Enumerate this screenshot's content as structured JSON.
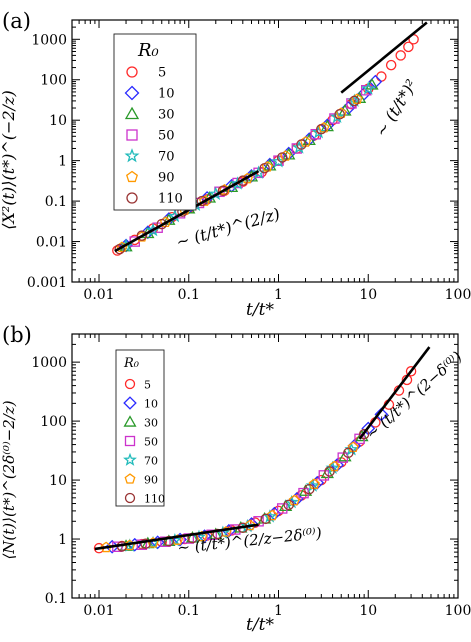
{
  "chart_data": [
    {
      "type": "scatter",
      "panel_label": "(a)",
      "x_scale": "log",
      "y_scale": "log",
      "xlim": [
        0.005,
        100
      ],
      "ylim": [
        0.001,
        3000
      ],
      "xlabel": "t/t*",
      "ylabel": "⟨X²(t)⟩(t*)^(−2/z)",
      "x_ticks": [
        {
          "value": 0.01,
          "label": "0.01"
        },
        {
          "value": 0.1,
          "label": "0.1"
        },
        {
          "value": 1,
          "label": "1"
        },
        {
          "value": 10,
          "label": "10"
        },
        {
          "value": 100,
          "label": "100"
        }
      ],
      "y_ticks": [
        {
          "value": 0.001,
          "label": "0.001"
        },
        {
          "value": 0.01,
          "label": "0.01"
        },
        {
          "value": 0.1,
          "label": "0.1"
        },
        {
          "value": 1,
          "label": "1"
        },
        {
          "value": 10,
          "label": "10"
        },
        {
          "value": 100,
          "label": "100"
        },
        {
          "value": 1000,
          "label": "1000"
        }
      ],
      "legend": {
        "title": "R₀",
        "placement": "top-left",
        "entries": [
          {
            "label": "5",
            "marker": "circle",
            "color": "#ff2a2a"
          },
          {
            "label": "10",
            "marker": "diamond",
            "color": "#2a2aff"
          },
          {
            "label": "30",
            "marker": "triangle",
            "color": "#2a9a2a"
          },
          {
            "label": "50",
            "marker": "square",
            "color": "#cc33cc"
          },
          {
            "label": "70",
            "marker": "star",
            "color": "#22bbbb"
          },
          {
            "label": "90",
            "marker": "pentagon",
            "color": "#ff9900"
          },
          {
            "label": "110",
            "marker": "circle",
            "color": "#993333"
          }
        ]
      },
      "fit_lines": [
        {
          "label": "∼ (t/t*)^(2/z)",
          "points": [
            [
              0.015,
              0.0058
            ],
            [
              0.6,
              0.55
            ]
          ]
        },
        {
          "label": "∼ (t/t*)²",
          "points": [
            [
              5,
              48
            ],
            [
              45,
              2600
            ]
          ]
        }
      ],
      "series": [
        {
          "label": "5",
          "points": [
            [
              0.016,
              0.006
            ],
            [
              0.025,
              0.011
            ],
            [
              0.04,
              0.021
            ],
            [
              0.065,
              0.04
            ],
            [
              0.1,
              0.066
            ],
            [
              0.16,
              0.11
            ],
            [
              0.25,
              0.18
            ],
            [
              0.4,
              0.3
            ],
            [
              0.65,
              0.52
            ],
            [
              1.0,
              1.0
            ],
            [
              1.6,
              2.0
            ],
            [
              2.5,
              4.2
            ],
            [
              4.0,
              10
            ],
            [
              6.5,
              25
            ],
            [
              10,
              60
            ],
            [
              14,
              120
            ],
            [
              18,
              230
            ],
            [
              23,
              400
            ],
            [
              28,
              650
            ],
            [
              32,
              1000
            ]
          ]
        },
        {
          "label": "10",
          "points": [
            [
              0.02,
              0.008
            ],
            [
              0.035,
              0.017
            ],
            [
              0.06,
              0.036
            ],
            [
              0.1,
              0.07
            ],
            [
              0.16,
              0.12
            ],
            [
              0.3,
              0.24
            ],
            [
              0.5,
              0.42
            ],
            [
              0.8,
              0.8
            ],
            [
              1.3,
              1.5
            ],
            [
              2.2,
              3.4
            ],
            [
              3.5,
              7.5
            ],
            [
              6,
              20
            ],
            [
              9,
              45
            ],
            [
              12,
              90
            ]
          ]
        },
        {
          "label": "30",
          "points": [
            [
              0.02,
              0.0075
            ],
            [
              0.035,
              0.016
            ],
            [
              0.06,
              0.034
            ],
            [
              0.1,
              0.065
            ],
            [
              0.17,
              0.12
            ],
            [
              0.3,
              0.22
            ],
            [
              0.5,
              0.4
            ],
            [
              0.8,
              0.75
            ],
            [
              1.3,
              1.4
            ],
            [
              2.2,
              3.2
            ],
            [
              3.5,
              7
            ],
            [
              5.5,
              17
            ],
            [
              8,
              35
            ],
            [
              11,
              75
            ]
          ]
        },
        {
          "label": "50",
          "points": [
            [
              0.025,
              0.01
            ],
            [
              0.045,
              0.022
            ],
            [
              0.08,
              0.05
            ],
            [
              0.13,
              0.09
            ],
            [
              0.22,
              0.17
            ],
            [
              0.35,
              0.28
            ],
            [
              0.6,
              0.5
            ],
            [
              1.0,
              1.0
            ],
            [
              1.6,
              2.0
            ],
            [
              2.6,
              4.5
            ],
            [
              4.2,
              11
            ],
            [
              6.5,
              26
            ],
            [
              9.5,
              55
            ]
          ]
        },
        {
          "label": "70",
          "points": [
            [
              0.02,
              0.0078
            ],
            [
              0.04,
              0.019
            ],
            [
              0.07,
              0.042
            ],
            [
              0.12,
              0.08
            ],
            [
              0.2,
              0.15
            ],
            [
              0.35,
              0.27
            ],
            [
              0.6,
              0.5
            ],
            [
              1.0,
              0.95
            ],
            [
              1.7,
              2.1
            ],
            [
              2.8,
              5
            ],
            [
              4.5,
              12
            ],
            [
              7,
              30
            ],
            [
              10,
              60
            ]
          ]
        },
        {
          "label": "90",
          "points": [
            [
              0.018,
              0.0072
            ],
            [
              0.03,
              0.013
            ],
            [
              0.055,
              0.03
            ],
            [
              0.09,
              0.06
            ],
            [
              0.15,
              0.1
            ],
            [
              0.25,
              0.19
            ],
            [
              0.45,
              0.36
            ],
            [
              0.75,
              0.7
            ],
            [
              1.2,
              1.3
            ],
            [
              2.0,
              2.9
            ],
            [
              3.2,
              6.5
            ],
            [
              5,
              15
            ],
            [
              7.5,
              33
            ]
          ]
        },
        {
          "label": "110",
          "points": [
            [
              0.017,
              0.0065
            ],
            [
              0.03,
              0.014
            ],
            [
              0.05,
              0.027
            ],
            [
              0.085,
              0.055
            ],
            [
              0.14,
              0.1
            ],
            [
              0.24,
              0.18
            ],
            [
              0.4,
              0.32
            ],
            [
              0.7,
              0.65
            ],
            [
              1.1,
              1.2
            ],
            [
              1.8,
              2.5
            ],
            [
              3.0,
              6
            ],
            [
              4.8,
              14
            ],
            [
              7,
              30
            ]
          ]
        }
      ]
    },
    {
      "type": "scatter",
      "panel_label": "(b)",
      "x_scale": "log",
      "y_scale": "log",
      "xlim": [
        0.005,
        100
      ],
      "ylim": [
        0.1,
        3000
      ],
      "xlabel": "t/t*",
      "ylabel": "⟨N(t)⟩(t*)^(2δ⁽⁰⁾−2/z)",
      "x_ticks": [
        {
          "value": 0.01,
          "label": "0.01"
        },
        {
          "value": 0.1,
          "label": "0.1"
        },
        {
          "value": 1,
          "label": "1"
        },
        {
          "value": 10,
          "label": "10"
        },
        {
          "value": 100,
          "label": "100"
        }
      ],
      "y_ticks": [
        {
          "value": 0.1,
          "label": "0.1"
        },
        {
          "value": 1,
          "label": "1"
        },
        {
          "value": 10,
          "label": "10"
        },
        {
          "value": 100,
          "label": "100"
        },
        {
          "value": 1000,
          "label": "1000"
        }
      ],
      "legend": {
        "title": "R₀",
        "placement": "top-left",
        "entries": [
          {
            "label": "5",
            "marker": "circle",
            "color": "#ff2a2a"
          },
          {
            "label": "10",
            "marker": "diamond",
            "color": "#2a2aff"
          },
          {
            "label": "30",
            "marker": "triangle",
            "color": "#2a9a2a"
          },
          {
            "label": "50",
            "marker": "square",
            "color": "#cc33cc"
          },
          {
            "label": "70",
            "marker": "star",
            "color": "#22bbbb"
          },
          {
            "label": "90",
            "marker": "pentagon",
            "color": "#ff9900"
          },
          {
            "label": "110",
            "marker": "circle",
            "color": "#993333"
          }
        ]
      },
      "fit_lines": [
        {
          "label": "∼ (t/t*)^(2/z−2δ⁽⁰⁾)",
          "points": [
            [
              0.009,
              0.68
            ],
            [
              0.6,
              1.75
            ]
          ]
        },
        {
          "label": "∼ (t/t*)^(2−δ⁽⁰⁾)",
          "points": [
            [
              8,
              50
            ],
            [
              48,
              1800
            ]
          ]
        }
      ],
      "series": [
        {
          "label": "5",
          "points": [
            [
              0.01,
              0.7
            ],
            [
              0.018,
              0.76
            ],
            [
              0.03,
              0.82
            ],
            [
              0.05,
              0.9
            ],
            [
              0.09,
              1.0
            ],
            [
              0.16,
              1.15
            ],
            [
              0.3,
              1.4
            ],
            [
              0.55,
              1.9
            ],
            [
              1.0,
              3.0
            ],
            [
              1.8,
              5.5
            ],
            [
              3.0,
              10
            ],
            [
              5.0,
              20
            ],
            [
              8.0,
              45
            ],
            [
              12,
              95
            ],
            [
              17,
              190
            ],
            [
              22,
              330
            ],
            [
              27,
              500
            ],
            [
              30,
              700
            ]
          ]
        },
        {
          "label": "10",
          "points": [
            [
              0.014,
              0.74
            ],
            [
              0.025,
              0.8
            ],
            [
              0.045,
              0.88
            ],
            [
              0.08,
              0.98
            ],
            [
              0.15,
              1.12
            ],
            [
              0.28,
              1.38
            ],
            [
              0.5,
              1.8
            ],
            [
              0.9,
              2.7
            ],
            [
              1.6,
              4.8
            ],
            [
              2.7,
              9
            ],
            [
              4.5,
              18
            ],
            [
              7,
              38
            ],
            [
              10,
              75
            ],
            [
              14,
              130
            ]
          ]
        },
        {
          "label": "30",
          "points": [
            [
              0.02,
              0.76
            ],
            [
              0.035,
              0.84
            ],
            [
              0.06,
              0.92
            ],
            [
              0.11,
              1.05
            ],
            [
              0.2,
              1.2
            ],
            [
              0.38,
              1.55
            ],
            [
              0.7,
              2.2
            ],
            [
              1.2,
              3.6
            ],
            [
              2.0,
              6.5
            ],
            [
              3.5,
              13
            ],
            [
              5.5,
              25
            ],
            [
              8.5,
              55
            ]
          ]
        },
        {
          "label": "50",
          "points": [
            [
              0.016,
              0.74
            ],
            [
              0.03,
              0.8
            ],
            [
              0.055,
              0.9
            ],
            [
              0.1,
              1.02
            ],
            [
              0.18,
              1.18
            ],
            [
              0.33,
              1.45
            ],
            [
              0.6,
              2.0
            ],
            [
              1.1,
              3.3
            ],
            [
              1.9,
              6
            ],
            [
              3.2,
              12
            ],
            [
              5.2,
              24
            ],
            [
              8,
              50
            ]
          ]
        },
        {
          "label": "70",
          "points": [
            [
              0.022,
              0.77
            ],
            [
              0.04,
              0.85
            ],
            [
              0.07,
              0.95
            ],
            [
              0.13,
              1.08
            ],
            [
              0.24,
              1.27
            ],
            [
              0.45,
              1.65
            ],
            [
              0.8,
              2.4
            ],
            [
              1.4,
              4.2
            ],
            [
              2.4,
              8
            ],
            [
              4.0,
              16
            ],
            [
              6.5,
              33
            ]
          ]
        },
        {
          "label": "90",
          "points": [
            [
              0.012,
              0.72
            ],
            [
              0.022,
              0.78
            ],
            [
              0.04,
              0.86
            ],
            [
              0.075,
              0.96
            ],
            [
              0.14,
              1.1
            ],
            [
              0.26,
              1.32
            ],
            [
              0.48,
              1.7
            ],
            [
              0.85,
              2.5
            ],
            [
              1.5,
              4.5
            ],
            [
              2.5,
              8.5
            ],
            [
              4.2,
              17
            ],
            [
              6.8,
              36
            ]
          ]
        },
        {
          "label": "110",
          "points": [
            [
              0.018,
              0.75
            ],
            [
              0.033,
              0.83
            ],
            [
              0.06,
              0.92
            ],
            [
              0.11,
              1.04
            ],
            [
              0.21,
              1.22
            ],
            [
              0.4,
              1.55
            ],
            [
              0.72,
              2.2
            ],
            [
              1.3,
              3.8
            ],
            [
              2.2,
              7
            ],
            [
              3.7,
              14
            ],
            [
              6,
              29
            ],
            [
              9,
              60
            ]
          ]
        }
      ]
    }
  ]
}
